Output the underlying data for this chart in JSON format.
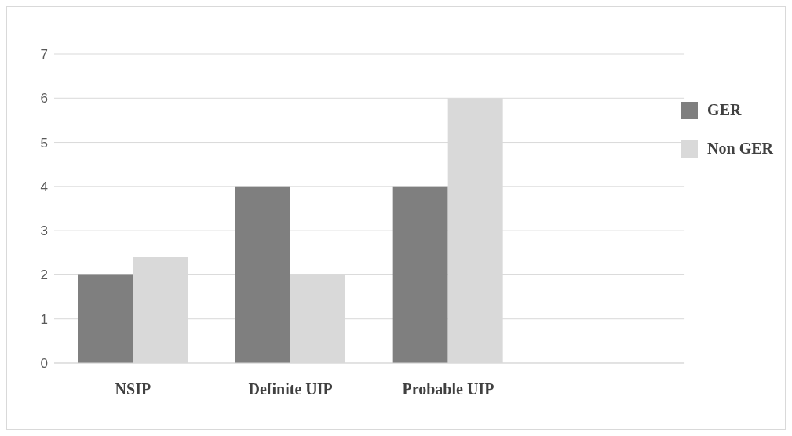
{
  "chart_data": {
    "type": "bar",
    "categories": [
      "NSIP",
      "Definite UIP",
      "Probable UIP",
      null
    ],
    "series": [
      {
        "name": "GER",
        "color": "#7f7f7f",
        "values": [
          2,
          4,
          4,
          null
        ]
      },
      {
        "name": "Non GER",
        "color": "#d9d9d9",
        "values": [
          2.4,
          2,
          6,
          null
        ]
      }
    ],
    "ylim": [
      0,
      7
    ],
    "yticks": [
      0,
      1,
      2,
      3,
      4,
      5,
      6,
      7
    ],
    "grid": "y",
    "legend": "top right"
  }
}
